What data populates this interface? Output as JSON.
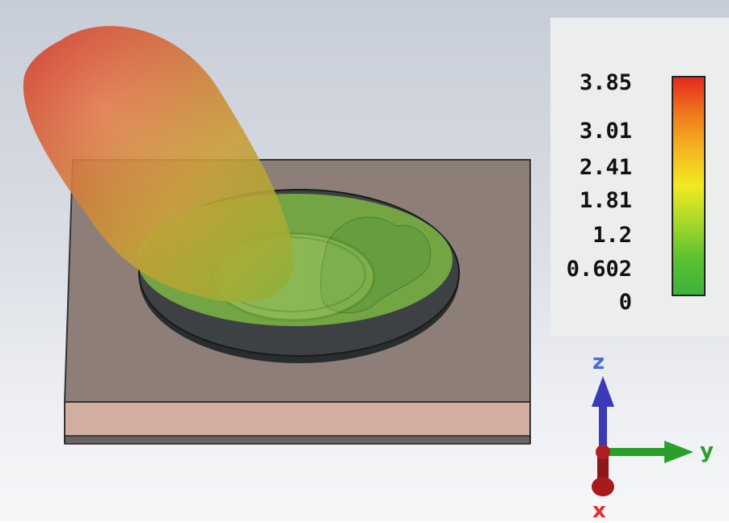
{
  "colorbar": {
    "ticks": [
      "3.85",
      "3.01",
      "2.41",
      "1.81",
      "1.2",
      "0.602",
      "0"
    ],
    "tick_values": [
      3.85,
      3.01,
      2.41,
      1.81,
      1.2,
      0.602,
      0
    ],
    "range": [
      0,
      3.85
    ],
    "colors": [
      "#e42a1e",
      "#ef7a1c",
      "#f5b520",
      "#f1ea22",
      "#a6d82b",
      "#5bc22f",
      "#3cb33a"
    ]
  },
  "axes": {
    "z_label": "z",
    "y_label": "y",
    "x_label": "x",
    "z_color": "#3a3ab8",
    "y_color": "#2aa02a",
    "x_color": "#a81b1b",
    "z_label_color": "#4a6ed0",
    "y_label_color": "#2aa02a",
    "x_label_color": "#e03030"
  },
  "scene": {
    "substrate_color": "#8e7e78",
    "ground_layer_color": "#d1ada2",
    "ring_color": "#3d4143",
    "lobe_tip_color": "#e23c1e",
    "overlay_color": "#7ec843"
  }
}
